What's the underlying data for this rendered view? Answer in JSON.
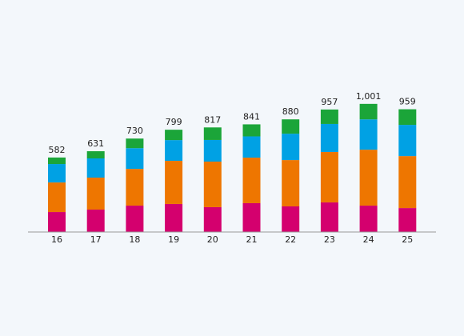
{
  "chart_data": {
    "type": "stacked-bar",
    "categories": [
      "16",
      "17",
      "18",
      "19",
      "20",
      "21",
      "22",
      "23",
      "24",
      "25"
    ],
    "series": [
      {
        "color": "#d4006e",
        "values": [
          156,
          175,
          206,
          219,
          194,
          225,
          200,
          231,
          206,
          187
        ]
      },
      {
        "color": "#ee7600",
        "values": [
          231,
          250,
          287,
          337,
          356,
          356,
          362,
          394,
          437,
          406
        ]
      },
      {
        "color": "#00a1e4",
        "values": [
          144,
          150,
          162,
          162,
          169,
          166,
          206,
          219,
          237,
          244
        ]
      },
      {
        "color": "#1ba539",
        "values": [
          51,
          56,
          75,
          81,
          98,
          94,
          112,
          113,
          121,
          122
        ]
      }
    ],
    "totals": {
      "values": [
        582,
        631,
        730,
        799,
        817,
        841,
        880,
        957,
        1001,
        959
      ],
      "value_labels": [
        "582",
        "631",
        "730",
        "799",
        "817",
        "841",
        "880",
        "957",
        "1,001",
        "959"
      ]
    }
  }
}
